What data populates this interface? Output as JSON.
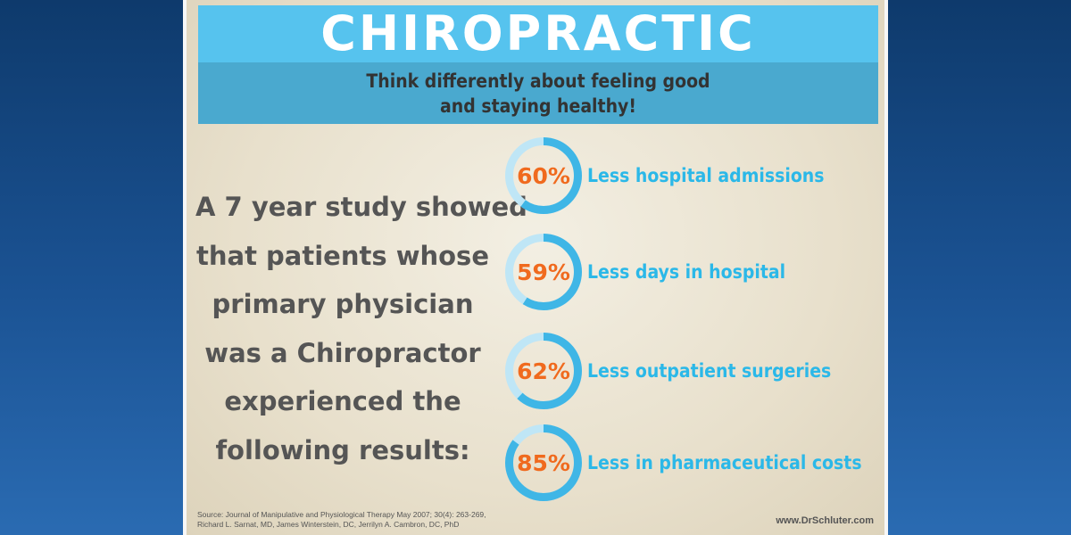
{
  "header": {
    "title": "CHIROPRACTIC",
    "subtitle_lines": [
      "Think differently about feeling good",
      "and staying healthy!"
    ]
  },
  "study_text_lines": [
    "A 7 year study showed",
    "that patients whose",
    "primary physician",
    "was a Chiropractor",
    "experienced the",
    "following results:"
  ],
  "stats": [
    {
      "value": 60,
      "percent": "60%",
      "label": "Less hospital admissions"
    },
    {
      "value": 59,
      "percent": "59%",
      "label": "Less days in hospital"
    },
    {
      "value": 62,
      "percent": "62%",
      "label": "Less outpatient surgeries"
    },
    {
      "value": 85,
      "percent": "85%",
      "label": "Less in pharmaceutical costs"
    }
  ],
  "footer": {
    "source_lines": [
      "Source: Journal of Manipulative and Physiological Therapy May 2007; 30(4): 263-269,",
      "Richard L. Sarnat, MD, James Winterstein, DC, Jerrilyn A. Cambron, DC, PhD"
    ],
    "website": "www.DrSchluter.com"
  },
  "colors": {
    "header_bg": "#56c3ee",
    "subtitle_bg": "#4aa9cf",
    "percent_text": "#f06a1e",
    "label_text": "#2bb8e8",
    "ring_fill": "#3fb6e6",
    "ring_track": "#bfe6f6"
  }
}
